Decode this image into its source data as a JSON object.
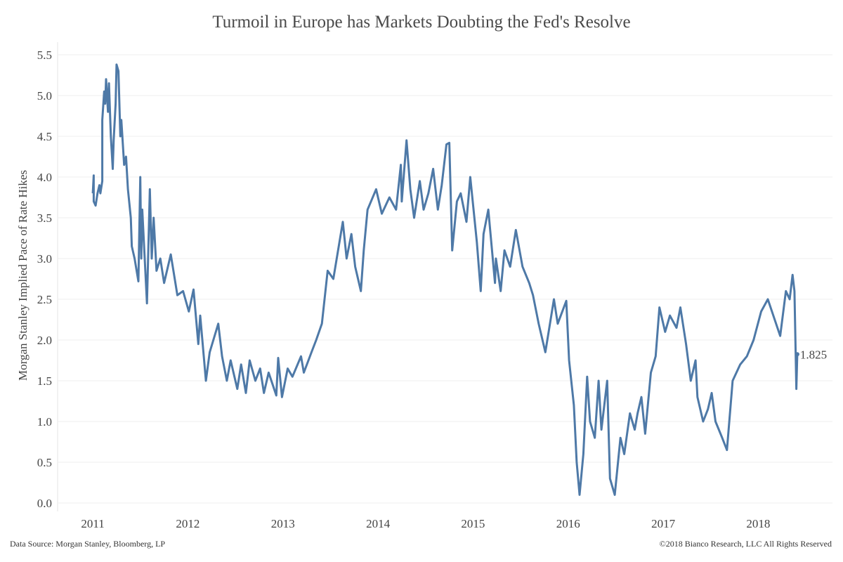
{
  "chart_data": {
    "type": "line",
    "title": "Turmoil in Europe has Markets Doubting the Fed's Resolve",
    "xlabel": "",
    "ylabel": "Morgan Stanley Implied Pace of Rate Hikes",
    "xlim": [
      2010.63,
      2018.78
    ],
    "ylim": [
      0,
      5.5
    ],
    "x_ticks": [
      2011,
      2012,
      2013,
      2014,
      2015,
      2016,
      2017,
      2018
    ],
    "y_ticks": [
      "0.0",
      "0.5",
      "1.0",
      "1.5",
      "2.0",
      "2.5",
      "3.0",
      "3.5",
      "4.0",
      "4.5",
      "5.0",
      "5.5"
    ],
    "grid": "horizontal",
    "line_color": "#4e79a7",
    "last_value_label": "1.825",
    "series": [
      {
        "points": [
          [
            2011.0,
            3.8
          ],
          [
            2011.01,
            4.02
          ],
          [
            2011.01,
            3.7
          ],
          [
            2011.03,
            3.65
          ],
          [
            2011.05,
            3.8
          ],
          [
            2011.07,
            3.9
          ],
          [
            2011.08,
            3.8
          ],
          [
            2011.1,
            3.95
          ],
          [
            2011.1,
            4.7
          ],
          [
            2011.12,
            5.05
          ],
          [
            2011.13,
            4.9
          ],
          [
            2011.14,
            5.2
          ],
          [
            2011.16,
            4.8
          ],
          [
            2011.17,
            5.15
          ],
          [
            2011.19,
            4.5
          ],
          [
            2011.21,
            4.1
          ],
          [
            2011.22,
            4.45
          ],
          [
            2011.24,
            4.9
          ],
          [
            2011.25,
            5.38
          ],
          [
            2011.27,
            5.3
          ],
          [
            2011.29,
            4.5
          ],
          [
            2011.3,
            4.7
          ],
          [
            2011.33,
            4.15
          ],
          [
            2011.35,
            4.25
          ],
          [
            2011.37,
            3.85
          ],
          [
            2011.4,
            3.5
          ],
          [
            2011.41,
            3.15
          ],
          [
            2011.44,
            3.0
          ],
          [
            2011.48,
            2.72
          ],
          [
            2011.5,
            4.0
          ],
          [
            2011.51,
            3.0
          ],
          [
            2011.52,
            3.6
          ],
          [
            2011.57,
            2.45
          ],
          [
            2011.6,
            3.85
          ],
          [
            2011.62,
            3.0
          ],
          [
            2011.64,
            3.5
          ],
          [
            2011.67,
            2.85
          ],
          [
            2011.71,
            3.0
          ],
          [
            2011.75,
            2.7
          ],
          [
            2011.82,
            3.05
          ],
          [
            2011.89,
            2.55
          ],
          [
            2011.95,
            2.6
          ],
          [
            2012.01,
            2.35
          ],
          [
            2012.06,
            2.62
          ],
          [
            2012.11,
            1.95
          ],
          [
            2012.13,
            2.3
          ],
          [
            2012.19,
            1.5
          ],
          [
            2012.23,
            1.85
          ],
          [
            2012.32,
            2.2
          ],
          [
            2012.36,
            1.8
          ],
          [
            2012.41,
            1.5
          ],
          [
            2012.45,
            1.75
          ],
          [
            2012.52,
            1.4
          ],
          [
            2012.56,
            1.7
          ],
          [
            2012.61,
            1.35
          ],
          [
            2012.65,
            1.75
          ],
          [
            2012.71,
            1.5
          ],
          [
            2012.76,
            1.65
          ],
          [
            2012.8,
            1.35
          ],
          [
            2012.85,
            1.6
          ],
          [
            2012.93,
            1.32
          ],
          [
            2012.95,
            1.78
          ],
          [
            2012.99,
            1.3
          ],
          [
            2013.05,
            1.65
          ],
          [
            2013.1,
            1.55
          ],
          [
            2013.19,
            1.8
          ],
          [
            2013.22,
            1.6
          ],
          [
            2013.3,
            1.85
          ],
          [
            2013.35,
            2.0
          ],
          [
            2013.41,
            2.2
          ],
          [
            2013.47,
            2.85
          ],
          [
            2013.53,
            2.75
          ],
          [
            2013.63,
            3.45
          ],
          [
            2013.67,
            3.0
          ],
          [
            2013.72,
            3.3
          ],
          [
            2013.76,
            2.9
          ],
          [
            2013.82,
            2.6
          ],
          [
            2013.85,
            3.1
          ],
          [
            2013.89,
            3.6
          ],
          [
            2013.98,
            3.85
          ],
          [
            2014.04,
            3.55
          ],
          [
            2014.12,
            3.75
          ],
          [
            2014.19,
            3.6
          ],
          [
            2014.24,
            4.15
          ],
          [
            2014.25,
            3.7
          ],
          [
            2014.3,
            4.45
          ],
          [
            2014.34,
            3.85
          ],
          [
            2014.38,
            3.5
          ],
          [
            2014.44,
            3.95
          ],
          [
            2014.48,
            3.6
          ],
          [
            2014.53,
            3.8
          ],
          [
            2014.58,
            4.1
          ],
          [
            2014.63,
            3.6
          ],
          [
            2014.67,
            3.9
          ],
          [
            2014.72,
            4.4
          ],
          [
            2014.75,
            4.42
          ],
          [
            2014.78,
            3.1
          ],
          [
            2014.83,
            3.7
          ],
          [
            2014.87,
            3.8
          ],
          [
            2014.93,
            3.45
          ],
          [
            2014.97,
            4.0
          ],
          [
            2015.04,
            3.2
          ],
          [
            2015.08,
            2.6
          ],
          [
            2015.11,
            3.3
          ],
          [
            2015.16,
            3.6
          ],
          [
            2015.23,
            2.7
          ],
          [
            2015.24,
            3.0
          ],
          [
            2015.29,
            2.6
          ],
          [
            2015.33,
            3.1
          ],
          [
            2015.39,
            2.9
          ],
          [
            2015.45,
            3.35
          ],
          [
            2015.52,
            2.9
          ],
          [
            2015.59,
            2.7
          ],
          [
            2015.63,
            2.55
          ],
          [
            2015.69,
            2.2
          ],
          [
            2015.76,
            1.85
          ],
          [
            2015.85,
            2.5
          ],
          [
            2015.89,
            2.2
          ],
          [
            2015.98,
            2.48
          ],
          [
            2016.01,
            1.75
          ],
          [
            2016.06,
            1.2
          ],
          [
            2016.09,
            0.5
          ],
          [
            2016.12,
            0.1
          ],
          [
            2016.16,
            0.6
          ],
          [
            2016.2,
            1.55
          ],
          [
            2016.23,
            1.0
          ],
          [
            2016.28,
            0.8
          ],
          [
            2016.32,
            1.5
          ],
          [
            2016.35,
            0.9
          ],
          [
            2016.41,
            1.5
          ],
          [
            2016.44,
            0.3
          ],
          [
            2016.49,
            0.1
          ],
          [
            2016.55,
            0.8
          ],
          [
            2016.59,
            0.6
          ],
          [
            2016.65,
            1.1
          ],
          [
            2016.7,
            0.9
          ],
          [
            2016.73,
            1.1
          ],
          [
            2016.77,
            1.3
          ],
          [
            2016.81,
            0.85
          ],
          [
            2016.87,
            1.6
          ],
          [
            2016.92,
            1.8
          ],
          [
            2016.96,
            2.4
          ],
          [
            2017.02,
            2.1
          ],
          [
            2017.07,
            2.3
          ],
          [
            2017.14,
            2.15
          ],
          [
            2017.18,
            2.4
          ],
          [
            2017.24,
            1.95
          ],
          [
            2017.29,
            1.5
          ],
          [
            2017.34,
            1.75
          ],
          [
            2017.36,
            1.3
          ],
          [
            2017.42,
            1.0
          ],
          [
            2017.47,
            1.15
          ],
          [
            2017.51,
            1.35
          ],
          [
            2017.55,
            1.0
          ],
          [
            2017.62,
            0.8
          ],
          [
            2017.67,
            0.65
          ],
          [
            2017.73,
            1.5
          ],
          [
            2017.81,
            1.7
          ],
          [
            2017.88,
            1.8
          ],
          [
            2017.95,
            2.0
          ],
          [
            2018.03,
            2.35
          ],
          [
            2018.1,
            2.5
          ],
          [
            2018.23,
            2.05
          ],
          [
            2018.29,
            2.6
          ],
          [
            2018.33,
            2.5
          ],
          [
            2018.36,
            2.8
          ],
          [
            2018.38,
            2.6
          ],
          [
            2018.4,
            1.4
          ],
          [
            2018.41,
            1.825
          ]
        ]
      }
    ]
  },
  "footer": {
    "source": "Data Source: Morgan Stanley, Bloomberg, LP",
    "copyright": "©2018 Bianco Research, LLC   All Rights Reserved"
  }
}
